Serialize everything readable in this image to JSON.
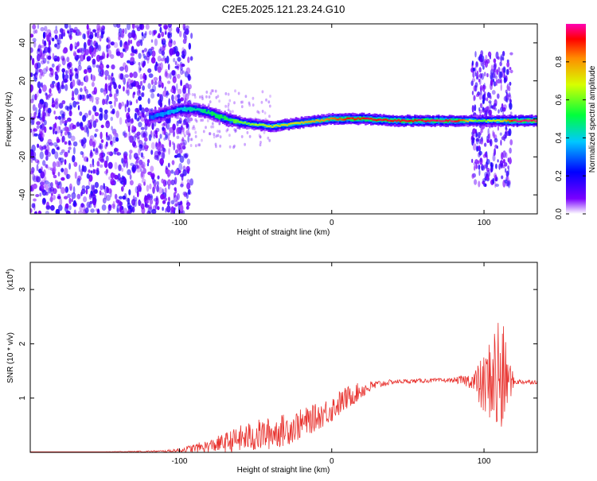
{
  "title": "C2E5.2025.121.23.24.G10",
  "colors": {
    "line": "#e8332f",
    "axis": "#000000",
    "background": "#ffffff"
  },
  "chart_data": [
    {
      "type": "heatmap",
      "xlabel": "Height of straight line (km)",
      "ylabel": "Frequency (Hz)",
      "xlim": [
        -198,
        135
      ],
      "ylim": [
        -50,
        50
      ],
      "x_ticks": [
        "-100",
        "0",
        "100"
      ],
      "x_tick_values": [
        -100,
        0,
        100
      ],
      "y_ticks": [
        "-40",
        "-20",
        "0",
        "20",
        "40"
      ],
      "y_tick_values": [
        -40,
        -20,
        0,
        20,
        40
      ],
      "colorbar": {
        "label": "Normalized spectral amplitude",
        "ticks": [
          "0.0",
          "0.2",
          "0.4",
          "0.6",
          "0.8"
        ],
        "tick_values": [
          0,
          0.2,
          0.4,
          0.6,
          0.8
        ],
        "range": [
          0,
          1
        ]
      },
      "ridge": {
        "description_values": "dominant frequency near 0 Hz along height",
        "x": [
          -118,
          -110,
          -100,
          -90,
          -80,
          -70,
          -60,
          -50,
          -40,
          -30,
          -20,
          -10,
          0,
          10,
          20,
          40,
          60,
          80,
          95,
          110,
          120,
          135
        ],
        "y": [
          1,
          3,
          5,
          5,
          3,
          0,
          -2,
          -3,
          -4,
          -3,
          -2,
          -1,
          0,
          0,
          0,
          -1,
          -1,
          -1,
          -1,
          -1,
          -1,
          -1
        ],
        "amplitude": [
          0.3,
          0.35,
          0.4,
          0.45,
          0.5,
          0.55,
          0.6,
          0.65,
          0.7,
          0.72,
          0.75,
          0.8,
          0.85,
          0.9,
          0.92,
          0.94,
          0.95,
          0.96,
          0.6,
          0.7,
          0.98,
          0.98
        ]
      },
      "noise_region_km": [
        -198,
        -100
      ],
      "burst_region_km": [
        92,
        118
      ]
    },
    {
      "type": "line",
      "xlabel": "Height of straight line (km)",
      "ylabel": "SNR (10 * v/v)",
      "y_scale_label": "(x10",
      "y_scale_exp": "4",
      "xlim": [
        -198,
        135
      ],
      "ylim": [
        0,
        3.5
      ],
      "x_ticks": [
        "-100",
        "0",
        "100"
      ],
      "x_tick_values": [
        -100,
        0,
        100
      ],
      "y_ticks": [
        "1",
        "2",
        "3"
      ],
      "y_tick_values": [
        1,
        2,
        3
      ],
      "series": [
        {
          "x": [
            -198,
            -150,
            -110,
            -100,
            -90,
            -80,
            -70,
            -60,
            -50,
            -40,
            -30,
            -20,
            -10,
            0,
            10,
            20,
            30,
            40,
            60,
            80,
            92,
            100,
            105,
            110,
            115,
            120,
            135
          ],
          "y": [
            0.01,
            0.01,
            0.02,
            0.04,
            0.08,
            0.12,
            0.18,
            0.25,
            0.3,
            0.35,
            0.42,
            0.52,
            0.65,
            0.8,
            1.0,
            1.15,
            1.25,
            1.3,
            1.32,
            1.33,
            1.32,
            1.2,
            1.4,
            1.3,
            1.35,
            1.3,
            1.3
          ],
          "spread": [
            0.0,
            0.0,
            0.02,
            0.04,
            0.08,
            0.12,
            0.18,
            0.25,
            0.3,
            0.3,
            0.3,
            0.28,
            0.25,
            0.25,
            0.22,
            0.15,
            0.08,
            0.04,
            0.04,
            0.04,
            0.15,
            0.6,
            0.8,
            1.5,
            0.6,
            0.05,
            0.04
          ]
        }
      ]
    }
  ]
}
